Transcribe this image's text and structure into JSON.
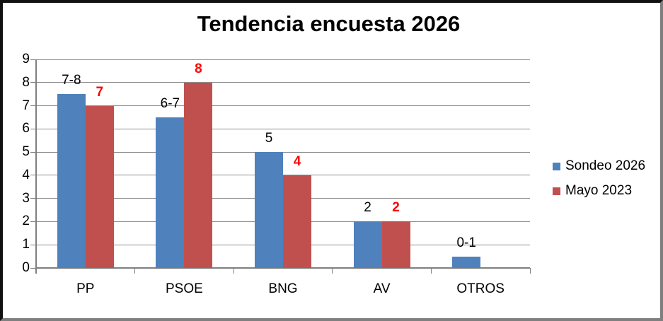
{
  "chart_data": {
    "type": "bar",
    "title": "Tendencia encuesta 2026",
    "categories": [
      "PP",
      "PSOE",
      "BNG",
      "AV",
      "OTROS"
    ],
    "series": [
      {
        "name": "Sondeo 2026",
        "color": "#4F81BD",
        "values": [
          7.5,
          6.5,
          5,
          2,
          0.5
        ],
        "data_labels": [
          "7-8",
          "6-7",
          "5",
          "2",
          "0-1"
        ],
        "label_color": "#000000",
        "label_bold": false
      },
      {
        "name": "Mayo 2023",
        "color": "#C0504D",
        "values": [
          7,
          8,
          4,
          2,
          null
        ],
        "data_labels": [
          "7",
          "8",
          "4",
          "2",
          null
        ],
        "label_color": "#FF0000",
        "label_bold": true
      }
    ],
    "ylim": [
      0,
      9
    ],
    "yticks": [
      0,
      1,
      2,
      3,
      4,
      5,
      6,
      7,
      8,
      9
    ],
    "grid": true,
    "legend_position": "right",
    "axis_color": "#7f7f7f",
    "gridline_color": "#8c8c8c"
  }
}
